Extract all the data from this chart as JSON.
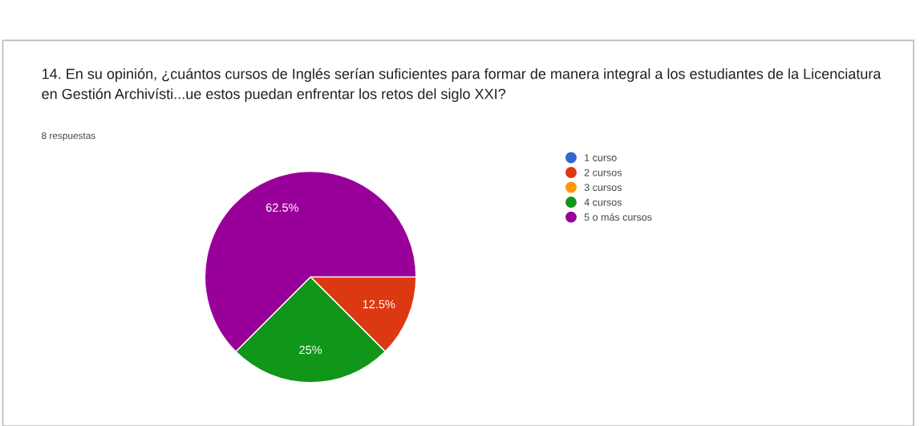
{
  "chart_data": {
    "type": "pie",
    "title": "14. En su opinión, ¿cuántos cursos de Inglés serían suficientes para formar de manera integral a los estudiantes de la Licenciatura en Gestión Archivísti...ue estos puedan enfrentar los retos del siglo XXI?",
    "subtitle": "8 respuestas",
    "categories": [
      "1 curso",
      "2 cursos",
      "3 cursos",
      "4 cursos",
      "5 o más cursos"
    ],
    "values": [
      0,
      12.5,
      0,
      25,
      62.5
    ],
    "colors": [
      "#3366cc",
      "#dc3912",
      "#ff9900",
      "#109618",
      "#990099"
    ],
    "value_labels": [
      null,
      "12.5%",
      null,
      "25%",
      "62.5%"
    ],
    "legend": "right"
  }
}
